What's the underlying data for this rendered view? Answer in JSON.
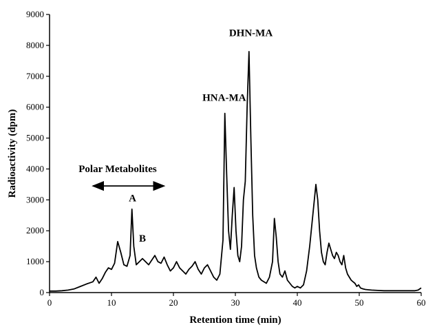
{
  "chart_data": {
    "type": "line",
    "title": "",
    "xlabel": "Retention time (min)",
    "ylabel": "Radioactivity (dpm)",
    "xlim": [
      0,
      60
    ],
    "ylim": [
      0,
      9000
    ],
    "xticks": [
      0,
      10,
      20,
      30,
      40,
      50,
      60
    ],
    "yticks": [
      0,
      1000,
      2000,
      3000,
      4000,
      5000,
      6000,
      7000,
      8000,
      9000
    ],
    "grid": false,
    "legend": "none",
    "series": [
      {
        "x": [
          0,
          1,
          2,
          3,
          4,
          5,
          6,
          7,
          7.5,
          8,
          8.5,
          9,
          9.5,
          10,
          10.5,
          11,
          11.5,
          12,
          12.5,
          13,
          13.3,
          13.6,
          14,
          14.5,
          15,
          15.5,
          16,
          16.5,
          17,
          17.5,
          18,
          18.5,
          19,
          19.5,
          20,
          20.5,
          21,
          21.5,
          22,
          22.5,
          23,
          23.5,
          24,
          24.5,
          25,
          25.5,
          26,
          26.5,
          27,
          27.5,
          28,
          28.3,
          28.6,
          28.9,
          29.2,
          29.5,
          29.8,
          30.1,
          30.4,
          30.7,
          31,
          31.3,
          31.6,
          31.9,
          32.2,
          32.5,
          32.8,
          33.1,
          33.4,
          33.8,
          34.2,
          34.6,
          35,
          35.5,
          36,
          36.3,
          36.6,
          36.9,
          37.2,
          37.6,
          38,
          38.4,
          38.8,
          39.2,
          39.6,
          40,
          40.5,
          41,
          41.5,
          42,
          42.5,
          43,
          43.3,
          43.6,
          43.9,
          44.2,
          44.5,
          44.8,
          45.1,
          45.4,
          45.7,
          46,
          46.3,
          46.6,
          46.9,
          47.2,
          47.5,
          47.8,
          48.1,
          48.4,
          48.7,
          49,
          49.3,
          49.6,
          49.9,
          50.2,
          50.6,
          51,
          51.5,
          52,
          53,
          54,
          55,
          56,
          57,
          58,
          59,
          59.5,
          60
        ],
        "y": [
          50,
          50,
          60,
          80,
          120,
          200,
          280,
          350,
          500,
          300,
          450,
          650,
          800,
          750,
          950,
          1650,
          1300,
          900,
          850,
          1200,
          2700,
          1500,
          900,
          1000,
          1100,
          1000,
          900,
          1050,
          1200,
          1000,
          950,
          1150,
          900,
          700,
          800,
          1000,
          800,
          700,
          600,
          750,
          850,
          1000,
          750,
          600,
          800,
          900,
          700,
          500,
          400,
          600,
          1700,
          5800,
          3800,
          2000,
          1400,
          2500,
          3400,
          2000,
          1200,
          1000,
          1500,
          3000,
          3600,
          6000,
          7800,
          5000,
          2500,
          1200,
          800,
          500,
          400,
          350,
          300,
          500,
          1000,
          2400,
          1800,
          1000,
          600,
          500,
          700,
          400,
          300,
          200,
          150,
          200,
          150,
          250,
          700,
          1500,
          2500,
          3500,
          3000,
          2000,
          1300,
          1000,
          900,
          1300,
          1600,
          1400,
          1200,
          1100,
          1300,
          1200,
          1000,
          900,
          1200,
          800,
          600,
          500,
          400,
          350,
          300,
          200,
          250,
          150,
          120,
          100,
          90,
          80,
          70,
          60,
          60,
          60,
          60,
          60,
          60,
          80,
          150
        ]
      }
    ],
    "annotations": [
      {
        "text": "DHN-MA",
        "x": 32.5,
        "y": 8300
      },
      {
        "text": "HNA-MA",
        "x": 28.2,
        "y": 6200
      },
      {
        "text": "Polar Metabolites",
        "x": 11,
        "y": 3900
      },
      {
        "text": "A",
        "x": 13.4,
        "y": 2950
      },
      {
        "text": "B",
        "x": 15,
        "y": 1650
      }
    ],
    "arrow": {
      "x_start": 7,
      "x_end": 18.5,
      "y": 3450
    }
  }
}
